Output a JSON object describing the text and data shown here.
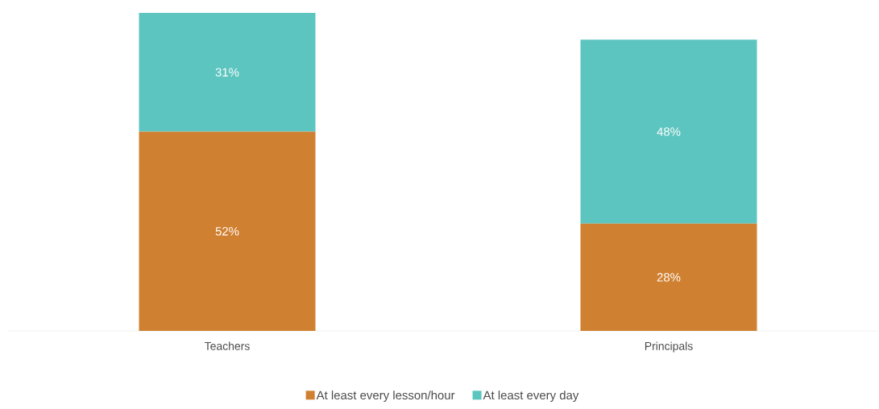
{
  "chart_data": {
    "type": "bar",
    "stacked": true,
    "categories": [
      "Teachers",
      "Principals"
    ],
    "series": [
      {
        "name": "At least every lesson/hour",
        "color": "#d08031",
        "values": [
          52,
          28
        ],
        "value_labels": [
          "52%",
          "28%"
        ]
      },
      {
        "name": "At least every day",
        "color": "#5dc5bf",
        "values": [
          31,
          48
        ],
        "value_labels": [
          "31%",
          "48%"
        ]
      }
    ],
    "legend": "bottom"
  }
}
